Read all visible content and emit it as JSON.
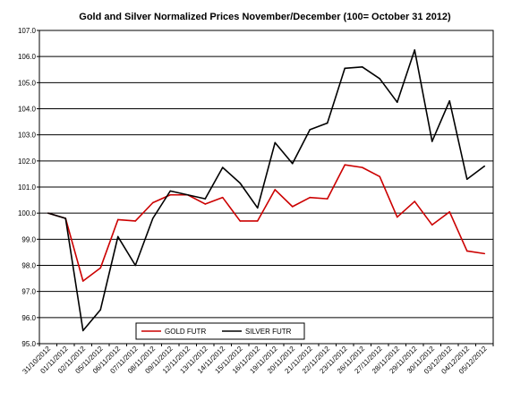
{
  "chart_data": {
    "type": "line",
    "title": "Gold and Silver Normalized Prices November/December (100= October 31 2012)",
    "xlabel": "",
    "ylabel": "",
    "ylim": [
      95.0,
      107.0
    ],
    "ytick_step": 1.0,
    "grid": "horizontal",
    "legend_position": "bottom-left",
    "categories": [
      "31/10/2012",
      "01/11/2012",
      "02/11/2012",
      "05/11/2012",
      "06/11/2012",
      "07/11/2012",
      "08/11/2012",
      "09/11/2012",
      "12/11/2012",
      "13/11/2012",
      "14/11/2012",
      "15/11/2012",
      "16/11/2012",
      "19/11/2012",
      "20/11/2012",
      "21/11/2012",
      "22/11/2012",
      "23/11/2012",
      "26/11/2012",
      "27/11/2012",
      "28/11/2012",
      "29/11/2012",
      "30/11/2012",
      "03/12/2012",
      "04/12/2012",
      "05/12/2012"
    ],
    "series": [
      {
        "name": "GOLD  FUTR",
        "color": "#cc0000",
        "values": [
          100.0,
          99.8,
          97.4,
          97.9,
          99.75,
          99.7,
          100.4,
          100.7,
          100.7,
          100.35,
          100.6,
          99.7,
          99.7,
          100.9,
          100.25,
          100.6,
          100.55,
          101.85,
          101.75,
          101.4,
          99.85,
          100.45,
          99.55,
          100.05,
          98.55,
          98.45
        ]
      },
      {
        "name": "SILVER  FUTR",
        "color": "#000000",
        "values": [
          100.0,
          99.8,
          95.5,
          96.3,
          99.1,
          98.0,
          99.8,
          100.85,
          100.7,
          100.55,
          101.75,
          101.15,
          100.2,
          102.7,
          101.9,
          103.2,
          103.45,
          105.55,
          105.6,
          105.15,
          104.25,
          106.25,
          102.75,
          104.3,
          101.3,
          101.8
        ]
      }
    ]
  }
}
